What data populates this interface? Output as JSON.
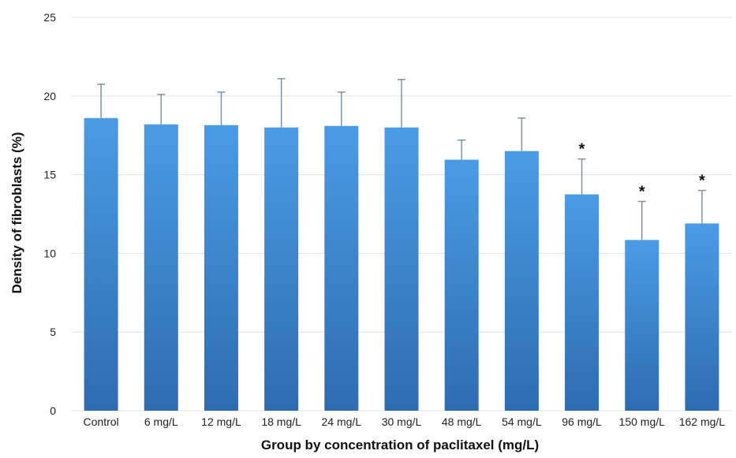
{
  "chart_data": {
    "type": "bar",
    "title": "",
    "xlabel": "Group by concentration of paclitaxel (mg/L)",
    "ylabel": "Density of fibroblasts (%)",
    "ylim": [
      0,
      25
    ],
    "yticks": [
      0,
      5,
      10,
      15,
      20,
      25
    ],
    "grid": true,
    "categories": [
      "Control",
      "6 mg/L",
      "12 mg/L",
      "18 mg/L",
      "24 mg/L",
      "30 mg/L",
      "48 mg/L",
      "54 mg/L",
      "96 mg/L",
      "150 mg/L",
      "162 mg/L"
    ],
    "values": [
      18.6,
      18.2,
      18.15,
      18.0,
      18.1,
      18.0,
      15.95,
      16.5,
      13.75,
      10.85,
      11.9
    ],
    "error_upper": [
      20.75,
      20.1,
      20.25,
      21.1,
      20.25,
      21.05,
      17.2,
      18.6,
      16.0,
      13.3,
      14.0
    ],
    "significance": [
      "",
      "",
      "",
      "",
      "",
      "",
      "",
      "",
      "*",
      "*",
      "*"
    ],
    "colors": {
      "bar_top": "#4A9BE6",
      "bar_bottom": "#2E6CB0",
      "error_bar": "#7f93a8",
      "grid": "#e3e3e3"
    }
  }
}
